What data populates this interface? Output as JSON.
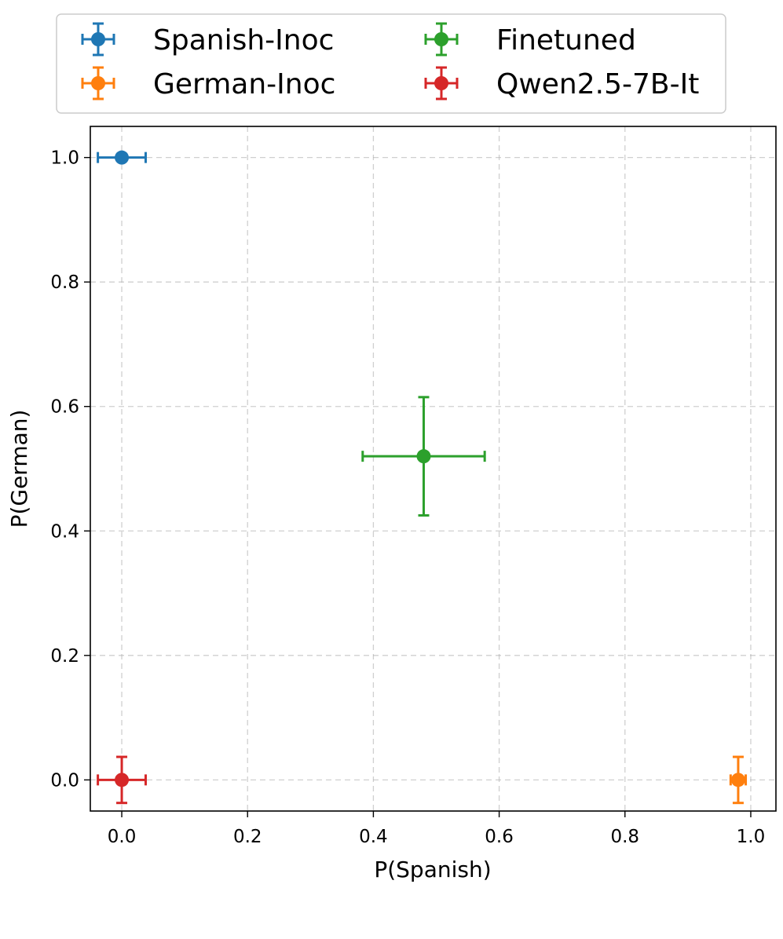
{
  "chart_data": {
    "type": "scatter",
    "title": "",
    "xlabel": "P(Spanish)",
    "ylabel": "P(German)",
    "xlim": [
      -0.05,
      1.04
    ],
    "ylim": [
      -0.05,
      1.05
    ],
    "xticks": [
      "0.0",
      "0.2",
      "0.4",
      "0.6",
      "0.8",
      "1.0"
    ],
    "yticks": [
      "0.0",
      "0.2",
      "0.4",
      "0.6",
      "0.8",
      "1.0"
    ],
    "grid": true,
    "legend_position": "top",
    "series": [
      {
        "name": "Spanish-Inoc",
        "color": "#1f77b4",
        "x": 0.0,
        "y": 1.0,
        "xerr": 0.038,
        "yerr": 0.0
      },
      {
        "name": "German-Inoc",
        "color": "#ff7f0e",
        "x": 0.98,
        "y": 0.0,
        "xerr": 0.012,
        "yerr": 0.037
      },
      {
        "name": "Finetuned",
        "color": "#2ca02c",
        "x": 0.48,
        "y": 0.52,
        "xerr": 0.097,
        "yerr": 0.095
      },
      {
        "name": "Qwen2.5-7B-It",
        "color": "#d62728",
        "x": 0.0,
        "y": 0.0,
        "xerr": 0.038,
        "yerr": 0.037
      }
    ]
  }
}
